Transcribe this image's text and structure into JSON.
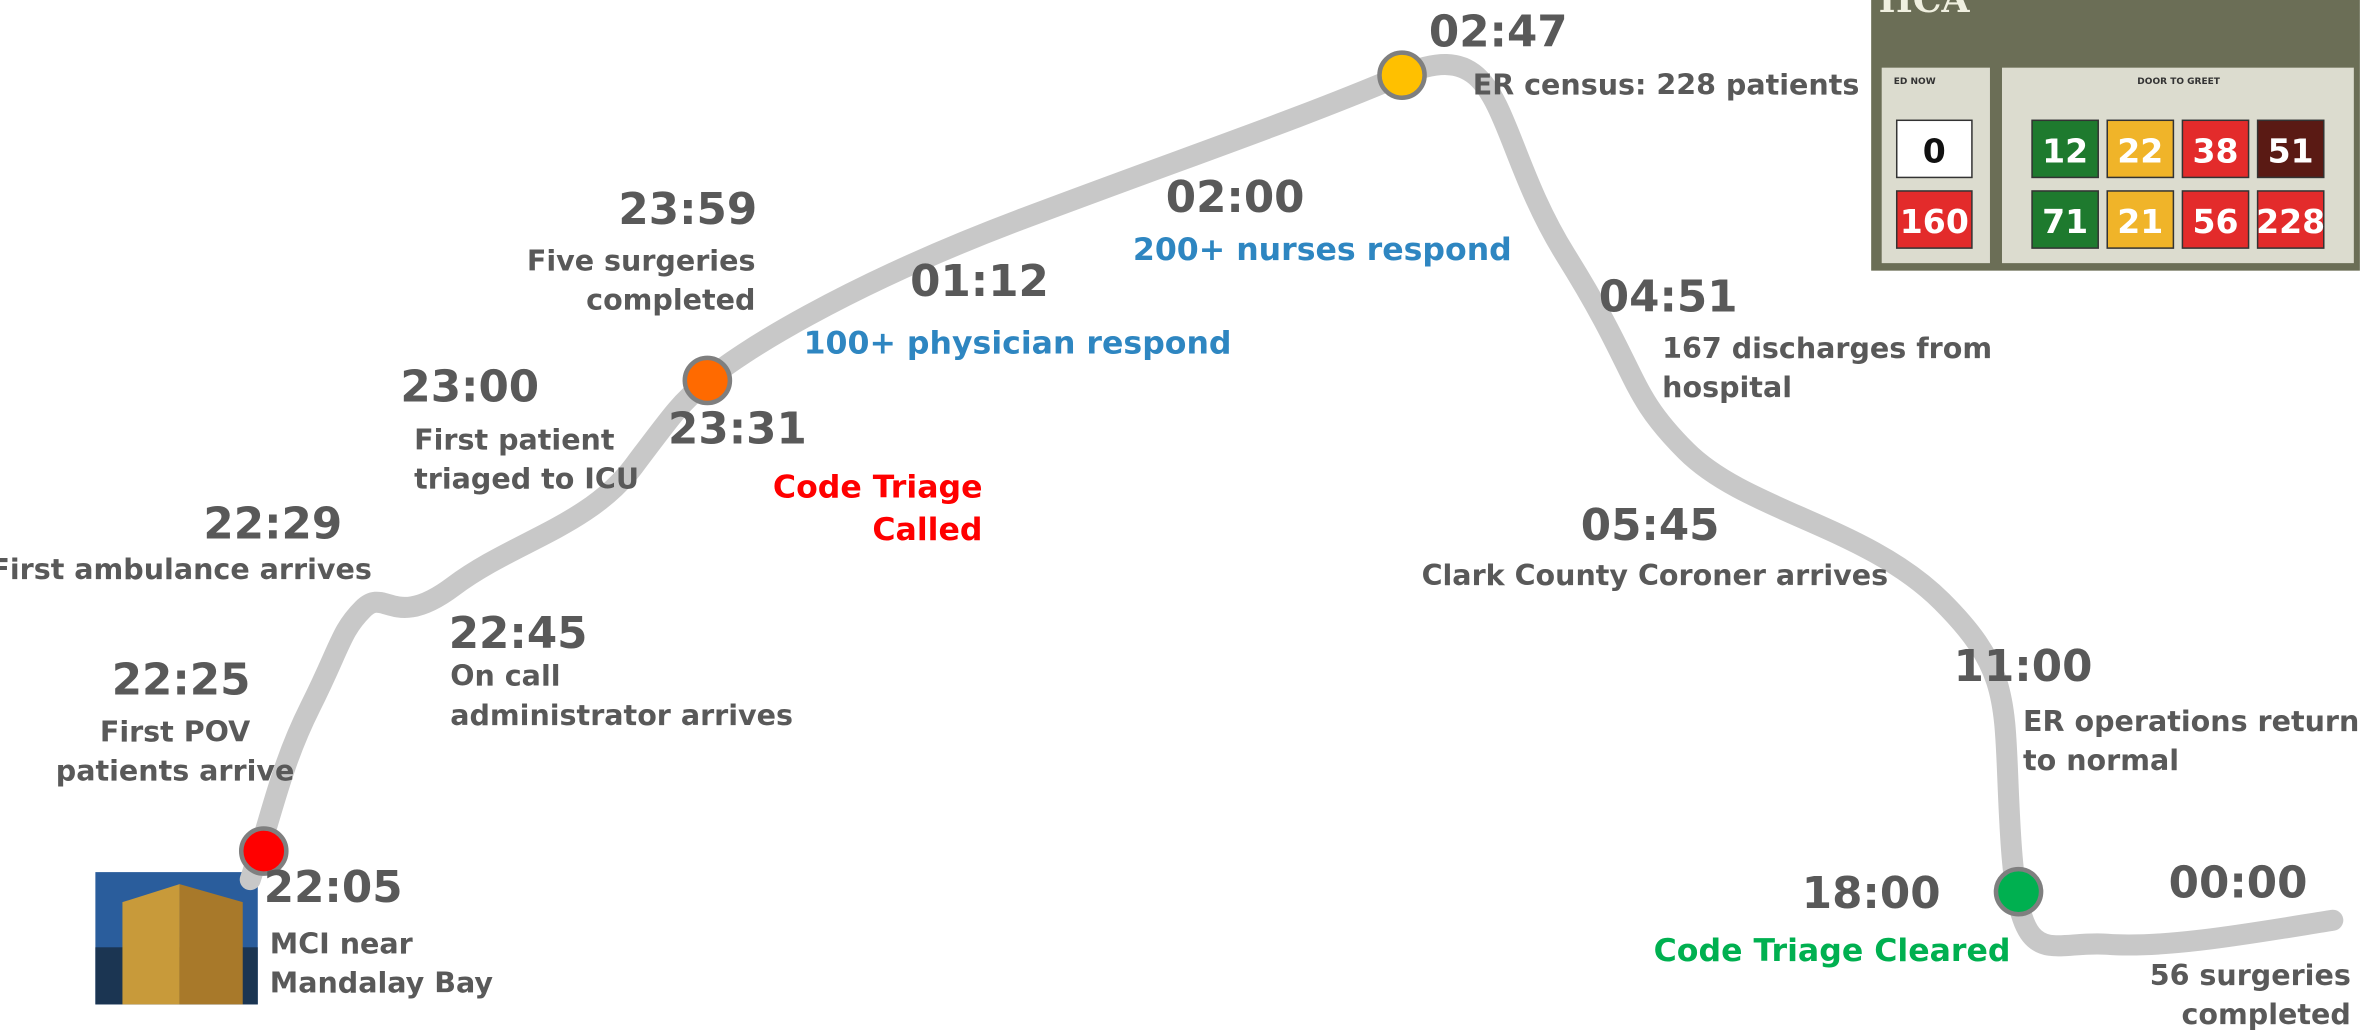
{
  "events": [
    {
      "time": "22:05",
      "note": [
        "MCI near",
        "Mandalay Bay"
      ],
      "marker_color": "#ff0000"
    },
    {
      "time": "22:25",
      "note": [
        "First POV",
        "patients arrive"
      ]
    },
    {
      "time": "22:29",
      "note": [
        "First ambulance arrives"
      ]
    },
    {
      "time": "22:45",
      "note": [
        "On call",
        "administrator arrives"
      ]
    },
    {
      "time": "23:00",
      "note": [
        "First patient",
        "triaged to ICU"
      ]
    },
    {
      "time": "23:31",
      "note": [
        "Code Triage",
        "Called"
      ],
      "note_color": "#ff0000",
      "marker_color": "#ff6a00"
    },
    {
      "time": "23:59",
      "note": [
        "Five surgeries",
        "completed"
      ]
    },
    {
      "time": "01:12",
      "note": [
        "100+ physician respond"
      ],
      "note_color": "#2e86c1"
    },
    {
      "time": "02:00",
      "note": [
        "200+ nurses respond"
      ],
      "note_color": "#2e86c1"
    },
    {
      "time": "02:47",
      "note": [
        "ER census: 228 patients"
      ],
      "marker_color": "#ffc000"
    },
    {
      "time": "04:51",
      "note": [
        "167 discharges from",
        "hospital"
      ]
    },
    {
      "time": "05:45",
      "note": [
        "Clark County Coroner arrives"
      ]
    },
    {
      "time": "11:00",
      "note": [
        "ER operations return",
        "to normal"
      ]
    },
    {
      "time": "18:00",
      "note": [
        "Code Triage Cleared"
      ],
      "note_color": "#00b050",
      "marker_color": "#00b050"
    },
    {
      "time": "00:00",
      "note": [
        "56 surgeries",
        "completed"
      ]
    }
  ],
  "dashboard": {
    "title": "HCA",
    "headers": [
      "ED NOW",
      "DOOR TO GREET"
    ],
    "cells": [
      {
        "value": 0,
        "color": "#ffffff"
      },
      {
        "value": 12,
        "color": "#1e7a2e"
      },
      {
        "value": 22,
        "color": "#f0b429"
      },
      {
        "value": 38,
        "color": "#e32b2b"
      },
      {
        "value": 51,
        "color": "#5a1a14"
      },
      {
        "value": 160,
        "color": "#e32b2b"
      },
      {
        "value": 71,
        "color": "#1e7a2e"
      },
      {
        "value": 21,
        "color": "#f0b429"
      },
      {
        "value": 56,
        "color": "#e32b2b"
      },
      {
        "value": 228,
        "color": "#e32b2b"
      }
    ]
  }
}
